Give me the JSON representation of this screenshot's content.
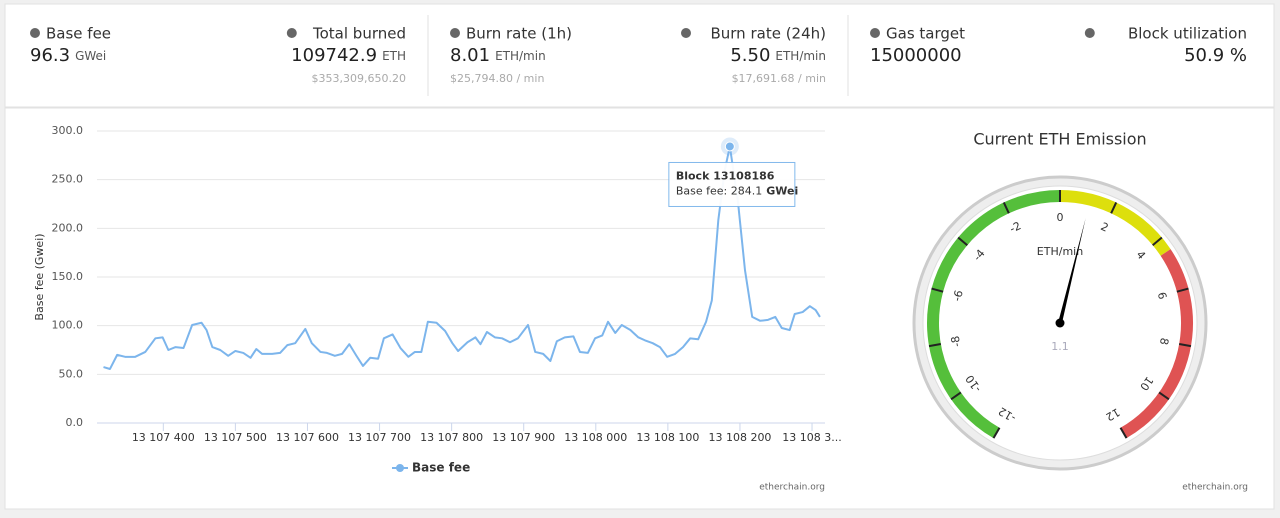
{
  "stats": [
    {
      "label": "Base fee",
      "value": "96.3",
      "unit": "GWei"
    },
    {
      "label": "Total burned",
      "value": "109742.9",
      "unit": "ETH",
      "sub": "$353,309,650.20"
    },
    {
      "label": "Burn rate (1h)",
      "value": "8.01",
      "unit": "ETH/min",
      "sub": "$25,794.80 / min"
    },
    {
      "label": "Burn rate (24h)",
      "value": "5.50",
      "unit": "ETH/min",
      "sub": "$17,691.68 / min"
    },
    {
      "label": "Gas target",
      "value": "15000000"
    },
    {
      "label": "Block utilization",
      "value": "50.9 %"
    }
  ],
  "chart_data": [
    {
      "type": "line",
      "ylabel": "Base fee (Gwei)",
      "credit": "etherchain.org",
      "color": "#7cb5ec",
      "grid": true,
      "xlim": [
        13107308,
        13108318
      ],
      "ylim": [
        0,
        300
      ],
      "xticks": [
        {
          "value": 13107400,
          "label": "13 107 400"
        },
        {
          "value": 13107500,
          "label": "13 107 500"
        },
        {
          "value": 13107600,
          "label": "13 107 600"
        },
        {
          "value": 13107700,
          "label": "13 107 700"
        },
        {
          "value": 13107800,
          "label": "13 107 800"
        },
        {
          "value": 13107900,
          "label": "13 107 900"
        },
        {
          "value": 13108000,
          "label": "13 108 000"
        },
        {
          "value": 13108100,
          "label": "13 108 100"
        },
        {
          "value": 13108200,
          "label": "13 108 200"
        },
        {
          "value": 13108300,
          "label": "13 108 3..."
        }
      ],
      "yticks": [
        {
          "value": 0,
          "label": "0.0"
        },
        {
          "value": 50,
          "label": "50.0"
        },
        {
          "value": 100,
          "label": "100.0"
        },
        {
          "value": 150,
          "label": "150.0"
        },
        {
          "value": 200,
          "label": "200.0"
        },
        {
          "value": 250,
          "label": "250.0"
        },
        {
          "value": 300,
          "label": "300.0"
        }
      ],
      "x": [
        13107317,
        13107326,
        13107336,
        13107347,
        13107361,
        13107375,
        13107389,
        13107399,
        13107407,
        13107417,
        13107428,
        13107440,
        13107453,
        13107460,
        13107468,
        13107479,
        13107490,
        13107500,
        13107511,
        13107521,
        13107529,
        13107537,
        13107551,
        13107562,
        13107572,
        13107583,
        13107597,
        13107606,
        13107618,
        13107627,
        13107638,
        13107648,
        13107658,
        13107668,
        13107677,
        13107687,
        13107698,
        13107706,
        13107718,
        13107729,
        13107740,
        13107749,
        13107758,
        13107767,
        13107779,
        13107791,
        13107801,
        13107809,
        13107822,
        13107833,
        13107840,
        13107849,
        13107860,
        13107870,
        13107881,
        13107892,
        13107906,
        13107916,
        13107927,
        13107937,
        13107946,
        13107957,
        13107969,
        13107978,
        13107989,
        13107999,
        13108009,
        13108017,
        13108027,
        13108036,
        13108048,
        13108059,
        13108068,
        13108079,
        13108089,
        13108099,
        13108110,
        13108121,
        13108131,
        13108142,
        13108153,
        13108161,
        13108170,
        13108179,
        13108186,
        13108197,
        13108207,
        13108217,
        13108228,
        13108239,
        13108249,
        13108258,
        13108269,
        13108276,
        13108287,
        13108297,
        13108305,
        13108311
      ],
      "series": [
        {
          "name": "Base fee",
          "color": "#7cb5ec",
          "values": [
            57.5,
            55.5,
            70,
            68,
            68,
            73,
            87,
            88,
            75,
            78,
            77,
            100.7,
            103,
            95.5,
            78,
            75,
            69,
            74,
            72,
            67,
            76,
            71,
            71,
            72,
            80,
            82,
            96.6,
            82,
            73,
            72,
            69,
            71,
            81,
            69,
            58.6,
            67,
            66,
            87,
            91,
            77,
            68,
            73,
            73,
            104,
            103,
            94.5,
            82,
            74,
            83,
            88,
            81,
            93.5,
            88,
            87,
            83,
            87,
            100.7,
            73,
            71,
            63.7,
            84,
            88,
            89,
            73,
            72,
            87,
            90,
            104,
            92.5,
            100.7,
            95.5,
            88,
            85,
            82,
            78,
            68,
            71,
            78,
            87,
            86,
            104,
            126,
            208.6,
            260,
            284.1,
            229,
            157,
            109,
            105,
            106,
            109,
            97.6,
            95.5,
            112,
            114,
            120,
            116,
            109
          ]
        }
      ],
      "tooltip": {
        "title": "Block 13108186",
        "text": "Base fee: 284.1",
        "unit": "GWei"
      }
    },
    {
      "type": "gauge",
      "title": "Current ETH Emission",
      "unit": "ETH/min",
      "credit": "etherchain.org",
      "value": 1.1,
      "min": -12,
      "max": 12,
      "ticks": [
        -12,
        -10,
        -8,
        -6,
        -4,
        -2,
        0,
        2,
        4,
        6,
        8,
        10,
        12
      ],
      "bands": [
        {
          "from": -12,
          "to": 0,
          "color": "#55bf3b"
        },
        {
          "from": 0,
          "to": 4.5,
          "color": "#dddf0d"
        },
        {
          "from": 4.5,
          "to": 12,
          "color": "#df5353"
        }
      ]
    }
  ]
}
